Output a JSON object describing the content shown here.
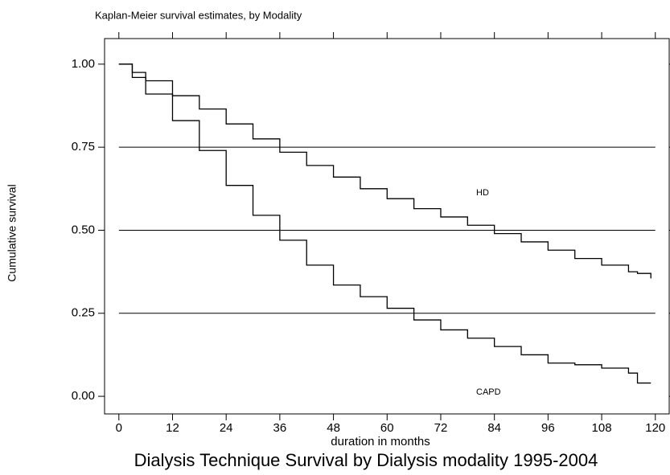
{
  "chart_data": {
    "type": "line",
    "title": "Kaplan-Meier survival estimates, by Modality",
    "caption": "Dialysis Technique Survival by Dialysis modality 1995-2004",
    "x_label": "duration in months",
    "y_label": "Cumulative survival",
    "x": [
      0,
      3,
      6,
      12,
      18,
      24,
      30,
      36,
      42,
      48,
      54,
      60,
      66,
      72,
      78,
      84,
      90,
      96,
      102,
      108,
      114,
      116,
      119
    ],
    "series": [
      {
        "name": "HD",
        "color": "#000000",
        "values": [
          1.0,
          0.975,
          0.95,
          0.905,
          0.865,
          0.82,
          0.775,
          0.735,
          0.695,
          0.66,
          0.625,
          0.595,
          0.565,
          0.54,
          0.515,
          0.49,
          0.465,
          0.44,
          0.415,
          0.395,
          0.375,
          0.37,
          0.355
        ]
      },
      {
        "name": "CAPD",
        "color": "#000000",
        "values": [
          1.0,
          0.96,
          0.91,
          0.83,
          0.74,
          0.635,
          0.545,
          0.47,
          0.395,
          0.335,
          0.3,
          0.265,
          0.23,
          0.2,
          0.175,
          0.15,
          0.125,
          0.1,
          0.095,
          0.085,
          0.07,
          0.04,
          0.04
        ]
      }
    ],
    "xlim": [
      -3.2,
      123.1
    ],
    "ylim": [
      -0.053,
      1.077
    ],
    "xticks": [
      0,
      12,
      24,
      36,
      48,
      60,
      72,
      84,
      96,
      108,
      120
    ],
    "yticks": [
      {
        "value": 0,
        "label": "0.00"
      },
      {
        "value": 0.25,
        "label": "0.25"
      },
      {
        "value": 0.5,
        "label": "0.50"
      },
      {
        "value": 0.75,
        "label": "0.75"
      },
      {
        "value": 1,
        "label": "1.00"
      }
    ],
    "grid": true,
    "step": true
  }
}
